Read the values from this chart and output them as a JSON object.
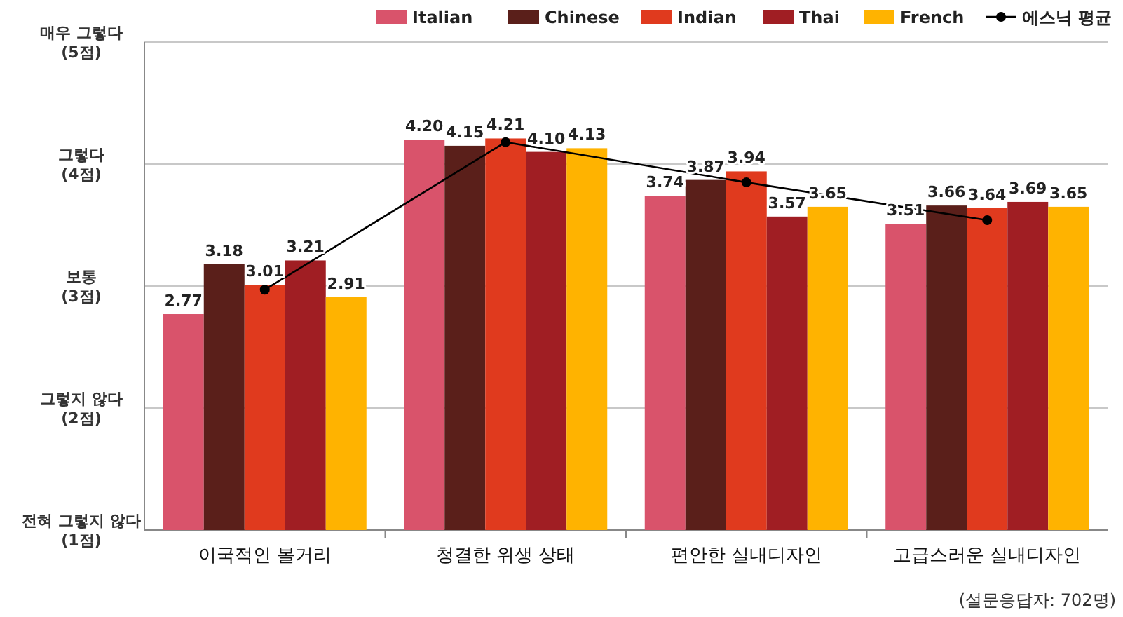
{
  "chart_data": {
    "type": "bar",
    "categories": [
      "이국적인 볼거리",
      "청결한 위생 상태",
      "편안한 실내디자인",
      "고급스러운 실내디자인"
    ],
    "ylim": [
      1,
      5
    ],
    "yticks": [
      {
        "value": 1,
        "label": "전혀 그렇지 않다 (1점)"
      },
      {
        "value": 2,
        "label": "그렇지 않다 (2점)"
      },
      {
        "value": 3,
        "label": "보통 (3점)"
      },
      {
        "value": 4,
        "label": "그렇다 (4점)"
      },
      {
        "value": 5,
        "label": "매우 그렇다 (5점)"
      }
    ],
    "grid": "y",
    "legend": "top right",
    "series": [
      {
        "name": "Italian",
        "color": "#d9536b",
        "values": [
          2.77,
          4.2,
          3.74,
          3.51
        ],
        "value_labels": [
          "2.77",
          "4.20",
          "3.74",
          "3.51"
        ]
      },
      {
        "name": "Chinese",
        "color": "#5a1f1a",
        "values": [
          3.18,
          4.15,
          3.87,
          3.66
        ],
        "value_labels": [
          "3.18",
          "4.15",
          "3.87",
          "3.66"
        ]
      },
      {
        "name": "Indian",
        "color": "#e03a1e",
        "values": [
          3.01,
          4.21,
          3.94,
          3.64
        ],
        "value_labels": [
          "3.01",
          "4.21",
          "3.94",
          "3.64"
        ]
      },
      {
        "name": "Thai",
        "color": "#a01e23",
        "values": [
          3.21,
          4.1,
          3.57,
          3.69
        ],
        "value_labels": [
          "3.21",
          "4.10",
          "3.57",
          "3.69"
        ]
      },
      {
        "name": "French",
        "color": "#ffb300",
        "values": [
          2.91,
          4.13,
          3.65,
          3.65
        ],
        "value_labels": [
          "2.91",
          "4.13",
          "3.65",
          "3.65"
        ]
      },
      {
        "name": "에스닉 평균",
        "type": "line",
        "color": "#000000",
        "marker": "circle",
        "line_style": "solid",
        "values": [
          2.97,
          4.18,
          3.85,
          3.54
        ]
      }
    ],
    "annotations": [
      "(설문응답자: 702명)"
    ]
  }
}
